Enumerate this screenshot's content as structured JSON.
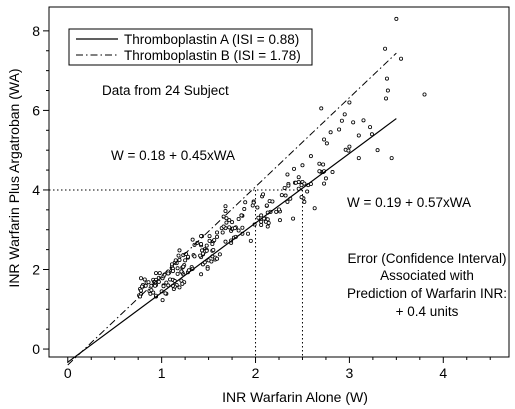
{
  "chart_data": {
    "type": "scatter",
    "title": "",
    "xlabel": "INR Warfarin Alone (W)",
    "ylabel": "INR Warfarin Plus Argatroban (WA)",
    "xlim": [
      -0.2,
      4.7
    ],
    "ylim": [
      -0.2,
      8.6
    ],
    "xticks": [
      0,
      1,
      2,
      3,
      4
    ],
    "xtick_labels": [
      "0",
      "1",
      "2",
      "3",
      "4"
    ],
    "yticks": [
      0,
      2,
      4,
      6,
      8
    ],
    "ytick_labels": [
      "0",
      "2",
      "4",
      "6",
      "8"
    ],
    "grid": false,
    "legend_position": "top-left",
    "series": [
      {
        "kind": "line",
        "style": "solid",
        "name": "Thromboplastin A (ISI = 0.88)",
        "intercept": -0.33,
        "slope": 1.75,
        "x_range": [
          0.0,
          3.5
        ]
      },
      {
        "kind": "line",
        "style": "dash-dot",
        "name": "Thromboplastin B (ISI = 1.78)",
        "intercept": -0.4,
        "slope": 2.24,
        "x_range": [
          0.0,
          3.5
        ]
      },
      {
        "kind": "points",
        "marker": "open-circle",
        "points": [
          [
            0.77,
            1.51
          ],
          [
            0.8,
            1.61
          ],
          [
            1.01,
            1.78
          ],
          [
            1.21,
            1.95
          ],
          [
            0.94,
            1.61
          ],
          [
            0.94,
            1.7
          ],
          [
            1.01,
            1.23
          ],
          [
            0.88,
            1.39
          ],
          [
            1.17,
            1.89
          ],
          [
            0.89,
            1.59
          ],
          [
            0.78,
            1.78
          ],
          [
            0.91,
            1.74
          ],
          [
            0.91,
            1.42
          ],
          [
            1.0,
            1.45
          ],
          [
            1.08,
            1.92
          ],
          [
            0.83,
            1.59
          ],
          [
            1.07,
            1.95
          ],
          [
            0.97,
            1.69
          ],
          [
            1.05,
            1.67
          ],
          [
            1.07,
            1.9
          ],
          [
            0.76,
            1.35
          ],
          [
            1.02,
            1.6
          ],
          [
            1.13,
            1.51
          ],
          [
            1.02,
            1.83
          ],
          [
            0.87,
            1.46
          ],
          [
            1.05,
            1.39
          ],
          [
            0.94,
            1.91
          ],
          [
            0.98,
            1.91
          ],
          [
            0.8,
            1.57
          ],
          [
            0.78,
            1.38
          ],
          [
            0.79,
            1.57
          ],
          [
            0.82,
            1.75
          ],
          [
            0.94,
            1.74
          ],
          [
            1.19,
            1.55
          ],
          [
            1.24,
            2.11
          ],
          [
            1.07,
            1.6
          ],
          [
            0.93,
            1.59
          ],
          [
            1.09,
            1.75
          ],
          [
            0.92,
            1.69
          ],
          [
            1.16,
            1.61
          ],
          [
            1.23,
            1.88
          ],
          [
            0.84,
            1.67
          ],
          [
            1.04,
            1.4
          ],
          [
            1.14,
            1.57
          ],
          [
            1.03,
            1.87
          ],
          [
            0.78,
            1.47
          ],
          [
            1.12,
            1.74
          ],
          [
            0.89,
            1.48
          ],
          [
            0.86,
            1.68
          ],
          [
            0.94,
            1.32
          ],
          [
            1.02,
            1.58
          ],
          [
            0.94,
            1.34
          ],
          [
            0.93,
            1.68
          ],
          [
            1.12,
            1.74
          ],
          [
            1.12,
            1.59
          ],
          [
            0.97,
            1.79
          ],
          [
            0.77,
            1.32
          ],
          [
            1.21,
            1.72
          ],
          [
            1.22,
            1.92
          ],
          [
            1.14,
            1.71
          ],
          [
            1.42,
            2.31
          ],
          [
            1.58,
            2.28
          ],
          [
            1.46,
            2.51
          ],
          [
            1.24,
            1.68
          ],
          [
            1.62,
            2.38
          ],
          [
            1.57,
            2.25
          ],
          [
            1.25,
            2.23
          ],
          [
            1.34,
            2.36
          ],
          [
            1.44,
            2.48
          ],
          [
            1.19,
            2.48
          ],
          [
            1.48,
            2.49
          ],
          [
            1.18,
            2.35
          ],
          [
            1.22,
            2.05
          ],
          [
            1.11,
            2.07
          ],
          [
            1.42,
            2.61
          ],
          [
            1.46,
            2.45
          ],
          [
            1.23,
            2.36
          ],
          [
            1.44,
            2.13
          ],
          [
            1.28,
            2.3
          ],
          [
            1.33,
            2.75
          ],
          [
            1.35,
            2.33
          ],
          [
            1.57,
            2.3
          ],
          [
            1.16,
            2.16
          ],
          [
            1.32,
            2.01
          ],
          [
            1.59,
            2.27
          ],
          [
            1.11,
            2.13
          ],
          [
            1.44,
            2.38
          ],
          [
            1.49,
            2.06
          ],
          [
            1.54,
            2.33
          ],
          [
            1.55,
            2.71
          ],
          [
            1.17,
            2.03
          ],
          [
            1.56,
            2.74
          ],
          [
            1.44,
            2.4
          ],
          [
            1.51,
            2.84
          ],
          [
            1.23,
            2.07
          ],
          [
            1.22,
            1.64
          ],
          [
            1.48,
            2.47
          ],
          [
            1.42,
            1.88
          ],
          [
            1.59,
            2.82
          ],
          [
            1.49,
            2.02
          ],
          [
            1.28,
            1.93
          ],
          [
            1.23,
            2.07
          ],
          [
            1.54,
            2.64
          ],
          [
            1.5,
            2.23
          ],
          [
            1.11,
            2.02
          ],
          [
            1.29,
            1.98
          ],
          [
            1.53,
            2.2
          ],
          [
            1.12,
            2.02
          ],
          [
            1.43,
            2.84
          ],
          [
            1.54,
            2.47
          ],
          [
            1.28,
            2.32
          ],
          [
            1.14,
            2.17
          ],
          [
            1.38,
            2.67
          ],
          [
            1.43,
            2.48
          ],
          [
            1.55,
            2.49
          ],
          [
            1.48,
            2.6
          ],
          [
            1.32,
            2.06
          ],
          [
            1.12,
            1.96
          ],
          [
            1.26,
            2.39
          ],
          [
            1.35,
            2.62
          ],
          [
            1.42,
            2.64
          ],
          [
            1.41,
            2.35
          ],
          [
            1.15,
            2.23
          ],
          [
            1.59,
            2.93
          ],
          [
            1.33,
            2.02
          ],
          [
            1.19,
            2.24
          ],
          [
            1.42,
            2.84
          ],
          [
            1.46,
            2.18
          ],
          [
            1.21,
            1.95
          ],
          [
            1.51,
            2.72
          ],
          [
            1.74,
            2.97
          ],
          [
            2.22,
            3.45
          ],
          [
            1.86,
            3.05
          ],
          [
            1.75,
            3.02
          ],
          [
            2.06,
            3.36
          ],
          [
            1.64,
            3.04
          ],
          [
            1.65,
            2.93
          ],
          [
            2.16,
            3.45
          ],
          [
            1.98,
            3.71
          ],
          [
            1.88,
            3.52
          ],
          [
            2.07,
            3.84
          ],
          [
            2.11,
            3.28
          ],
          [
            1.86,
            3.35
          ],
          [
            2.15,
            3.72
          ],
          [
            2.13,
            3.26
          ],
          [
            1.75,
            3.19
          ],
          [
            1.77,
            2.8
          ],
          [
            1.76,
            3.03
          ],
          [
            2.13,
            3.43
          ],
          [
            2.03,
            3.3
          ],
          [
            1.79,
            2.82
          ],
          [
            1.86,
            2.9
          ],
          [
            2.09,
            3.28
          ],
          [
            2.11,
            3.2
          ],
          [
            1.74,
            2.67
          ],
          [
            1.72,
            3.06
          ],
          [
            1.89,
            3.69
          ],
          [
            1.72,
            3.24
          ],
          [
            1.98,
            3.68
          ],
          [
            1.95,
            2.72
          ],
          [
            1.92,
            2.9
          ],
          [
            1.68,
            3.04
          ],
          [
            1.82,
            3.27
          ],
          [
            2.26,
            3.46
          ],
          [
            1.74,
            2.73
          ],
          [
            2.13,
            3.08
          ],
          [
            1.79,
            3.06
          ],
          [
            2.02,
            3.56
          ],
          [
            1.66,
            3.33
          ],
          [
            1.69,
            3.29
          ],
          [
            2.28,
            3.87
          ],
          [
            2.12,
            3.6
          ],
          [
            2.18,
            3.71
          ],
          [
            1.78,
            3.04
          ],
          [
            1.68,
            2.7
          ],
          [
            2.06,
            3.12
          ],
          [
            1.68,
            3.59
          ],
          [
            1.82,
            2.98
          ],
          [
            1.99,
            3.13
          ],
          [
            1.66,
            3.08
          ],
          [
            2.08,
            3.89
          ],
          [
            1.69,
            3.18
          ],
          [
            1.68,
            3.47
          ],
          [
            1.85,
            3.36
          ],
          [
            2.12,
            3.61
          ],
          [
            1.97,
            3.61
          ],
          [
            2.14,
            3.17
          ],
          [
            2.25,
            3.51
          ],
          [
            2.06,
            3.2
          ],
          [
            1.85,
            3.36
          ],
          [
            2.72,
            4.45
          ],
          [
            2.31,
            4.05
          ],
          [
            2.35,
            4.15
          ],
          [
            2.46,
            4.2
          ],
          [
            2.68,
            4.66
          ],
          [
            2.76,
            5.17
          ],
          [
            2.34,
            3.7
          ],
          [
            2.5,
            4.2
          ],
          [
            2.69,
            4.46
          ],
          [
            2.32,
            3.86
          ],
          [
            2.35,
            4.11
          ],
          [
            2.46,
            4.32
          ],
          [
            2.51,
            3.79
          ],
          [
            2.63,
            3.54
          ],
          [
            2.49,
            4.12
          ],
          [
            2.59,
            4.15
          ],
          [
            2.75,
            4.29
          ],
          [
            2.42,
            4.18
          ],
          [
            2.52,
            4.16
          ],
          [
            2.52,
            3.7
          ],
          [
            2.41,
            4.53
          ],
          [
            2.56,
            4.12
          ],
          [
            2.37,
            3.78
          ],
          [
            2.72,
            4.64
          ],
          [
            2.5,
            4.62
          ],
          [
            2.55,
            3.96
          ],
          [
            2.43,
            4.18
          ],
          [
            2.68,
            4.47
          ],
          [
            2.73,
            4.47
          ],
          [
            2.46,
            4.03
          ],
          [
            2.89,
            5.52
          ],
          [
            2.73,
            5.27
          ],
          [
            2.59,
            4.85
          ],
          [
            2.4,
            3.28
          ],
          [
            2.82,
            4.45
          ],
          [
            2.49,
            3.82
          ],
          [
            2.26,
            3.24
          ],
          [
            2.34,
            4.39
          ],
          [
            3.0,
            5.09
          ],
          [
            2.73,
            4.16
          ],
          [
            3.04,
            5.7
          ],
          [
            3.22,
            5.58
          ],
          [
            3.15,
            5.75
          ],
          [
            3.41,
            6.5
          ],
          [
            3.1,
            5.37
          ],
          [
            2.92,
            5.74
          ],
          [
            2.96,
            5.01
          ],
          [
            3.24,
            5.4
          ],
          [
            3.39,
            6.3
          ],
          [
            2.99,
            4.99
          ],
          [
            3.5,
            8.3
          ],
          [
            3.38,
            7.55
          ],
          [
            3.8,
            6.4
          ],
          [
            3.45,
            4.8
          ],
          [
            3.3,
            5.0
          ],
          [
            3.4,
            6.8
          ],
          [
            2.95,
            5.9
          ],
          [
            3.1,
            4.8
          ],
          [
            2.7,
            6.05
          ],
          [
            2.8,
            5.45
          ],
          [
            3.55,
            7.3
          ],
          [
            3.0,
            6.2
          ]
        ]
      }
    ],
    "reference_lines": {
      "horizontal_y": 4,
      "horizontal_x_end": 2.5,
      "vertical_x": [
        2.0,
        2.5
      ]
    },
    "legend": [
      "Thromboplastin A (ISI = 0.88)",
      "Thromboplastin B (ISI = 1.78)"
    ],
    "annotations": {
      "subjects": "Data from 24 Subject",
      "equation_b": "W = 0.18 + 0.45xWA",
      "equation_a": "W = 0.19 + 0.57xWA",
      "error_lines": [
        "Error (Confidence Interval)",
        "Associated with",
        "Prediction of Warfarin INR:",
        "+ 0.4 units"
      ]
    }
  }
}
